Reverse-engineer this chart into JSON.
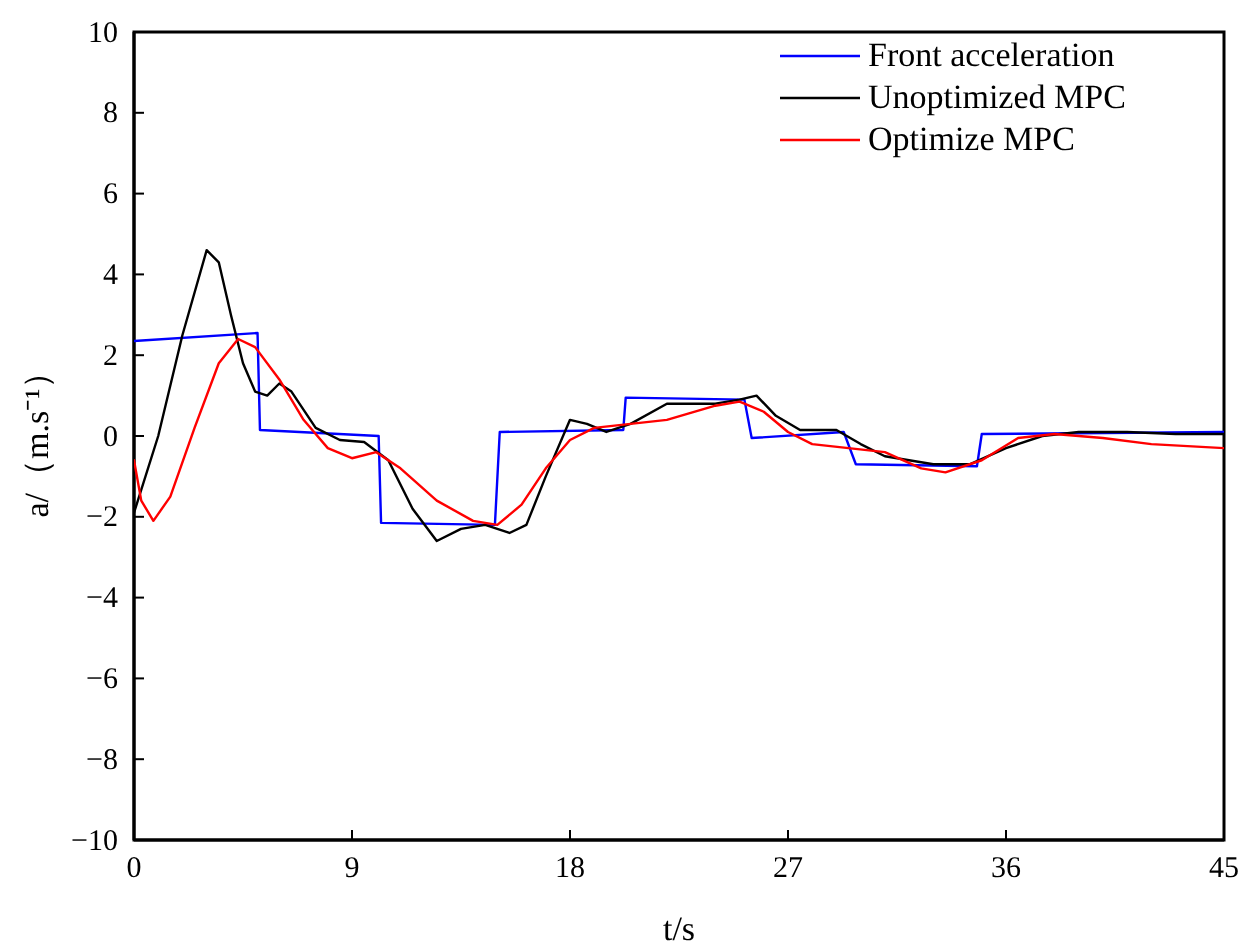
{
  "chart_data": {
    "type": "line",
    "xlabel": "t/s",
    "ylabel": "a/（m.s⁻¹）",
    "xlim": [
      0,
      45
    ],
    "ylim": [
      -10,
      10
    ],
    "xticks": [
      0,
      9,
      18,
      27,
      36,
      45
    ],
    "yticks": [
      {
        "value": -10,
        "label": "−10"
      },
      {
        "value": -8,
        "label": "−8"
      },
      {
        "value": -6,
        "label": "−6"
      },
      {
        "value": -4,
        "label": "−4"
      },
      {
        "value": -2,
        "label": "−2"
      },
      0,
      2,
      4,
      6,
      8,
      10
    ],
    "legend": "top right",
    "grid": false,
    "line_style": "solid",
    "marker": "none",
    "series": [
      {
        "name": "Front acceleration",
        "color": "#0000ff",
        "x": [
          0,
          5.1,
          5.2,
          10.1,
          10.2,
          14.9,
          15.1,
          20.2,
          20.3,
          25.2,
          25.5,
          29.3,
          29.8,
          34.8,
          35,
          45
        ],
        "values": [
          2.35,
          2.55,
          0.15,
          0,
          -2.15,
          -2.2,
          0.1,
          0.15,
          0.95,
          0.9,
          -0.05,
          0.1,
          -0.7,
          -0.75,
          0.05,
          0.1
        ]
      },
      {
        "name": "Unoptimized MPC",
        "color": "#000000",
        "x": [
          0,
          1,
          2,
          3,
          3.5,
          4,
          4.5,
          5,
          5.5,
          6,
          6.5,
          7.5,
          8.5,
          9.5,
          10.5,
          11.5,
          12.5,
          13.5,
          14.5,
          15.5,
          16.2,
          17,
          18,
          18.7,
          19.5,
          20.5,
          22,
          24,
          25,
          25.7,
          26.5,
          27.5,
          29,
          30,
          31,
          33,
          34.5,
          36,
          37.5,
          39,
          41,
          43,
          45
        ],
        "values": [
          -1.9,
          0,
          2.5,
          4.6,
          4.3,
          3,
          1.8,
          1.1,
          1,
          1.3,
          1.1,
          0.2,
          -0.1,
          -0.15,
          -0.6,
          -1.8,
          -2.6,
          -2.3,
          -2.2,
          -2.4,
          -2.2,
          -1,
          0.4,
          0.3,
          0.1,
          0.3,
          0.8,
          0.8,
          0.9,
          1,
          0.5,
          0.15,
          0.15,
          -0.2,
          -0.5,
          -0.7,
          -0.7,
          -0.3,
          0,
          0.1,
          0.1,
          0.05,
          0.05
        ]
      },
      {
        "name": "Optimize MPC",
        "color": "#ff0000",
        "x": [
          0,
          0.3,
          0.8,
          1.5,
          2.5,
          3.5,
          4.3,
          5,
          6,
          7,
          8,
          9,
          10,
          11,
          12.5,
          14,
          15,
          16,
          17,
          18,
          19,
          20.5,
          22,
          24,
          25,
          26,
          27,
          28,
          29.5,
          31,
          32.5,
          33.5,
          35,
          36.5,
          38,
          40,
          42,
          45
        ],
        "values": [
          -0.6,
          -1.6,
          -2.1,
          -1.5,
          0.2,
          1.8,
          2.4,
          2.2,
          1.4,
          0.4,
          -0.3,
          -0.55,
          -0.4,
          -0.8,
          -1.6,
          -2.1,
          -2.2,
          -1.7,
          -0.8,
          -0.1,
          0.2,
          0.3,
          0.4,
          0.75,
          0.85,
          0.6,
          0.1,
          -0.2,
          -0.3,
          -0.4,
          -0.8,
          -0.9,
          -0.6,
          -0.05,
          0.05,
          -0.05,
          -0.2,
          -0.3
        ]
      }
    ]
  }
}
